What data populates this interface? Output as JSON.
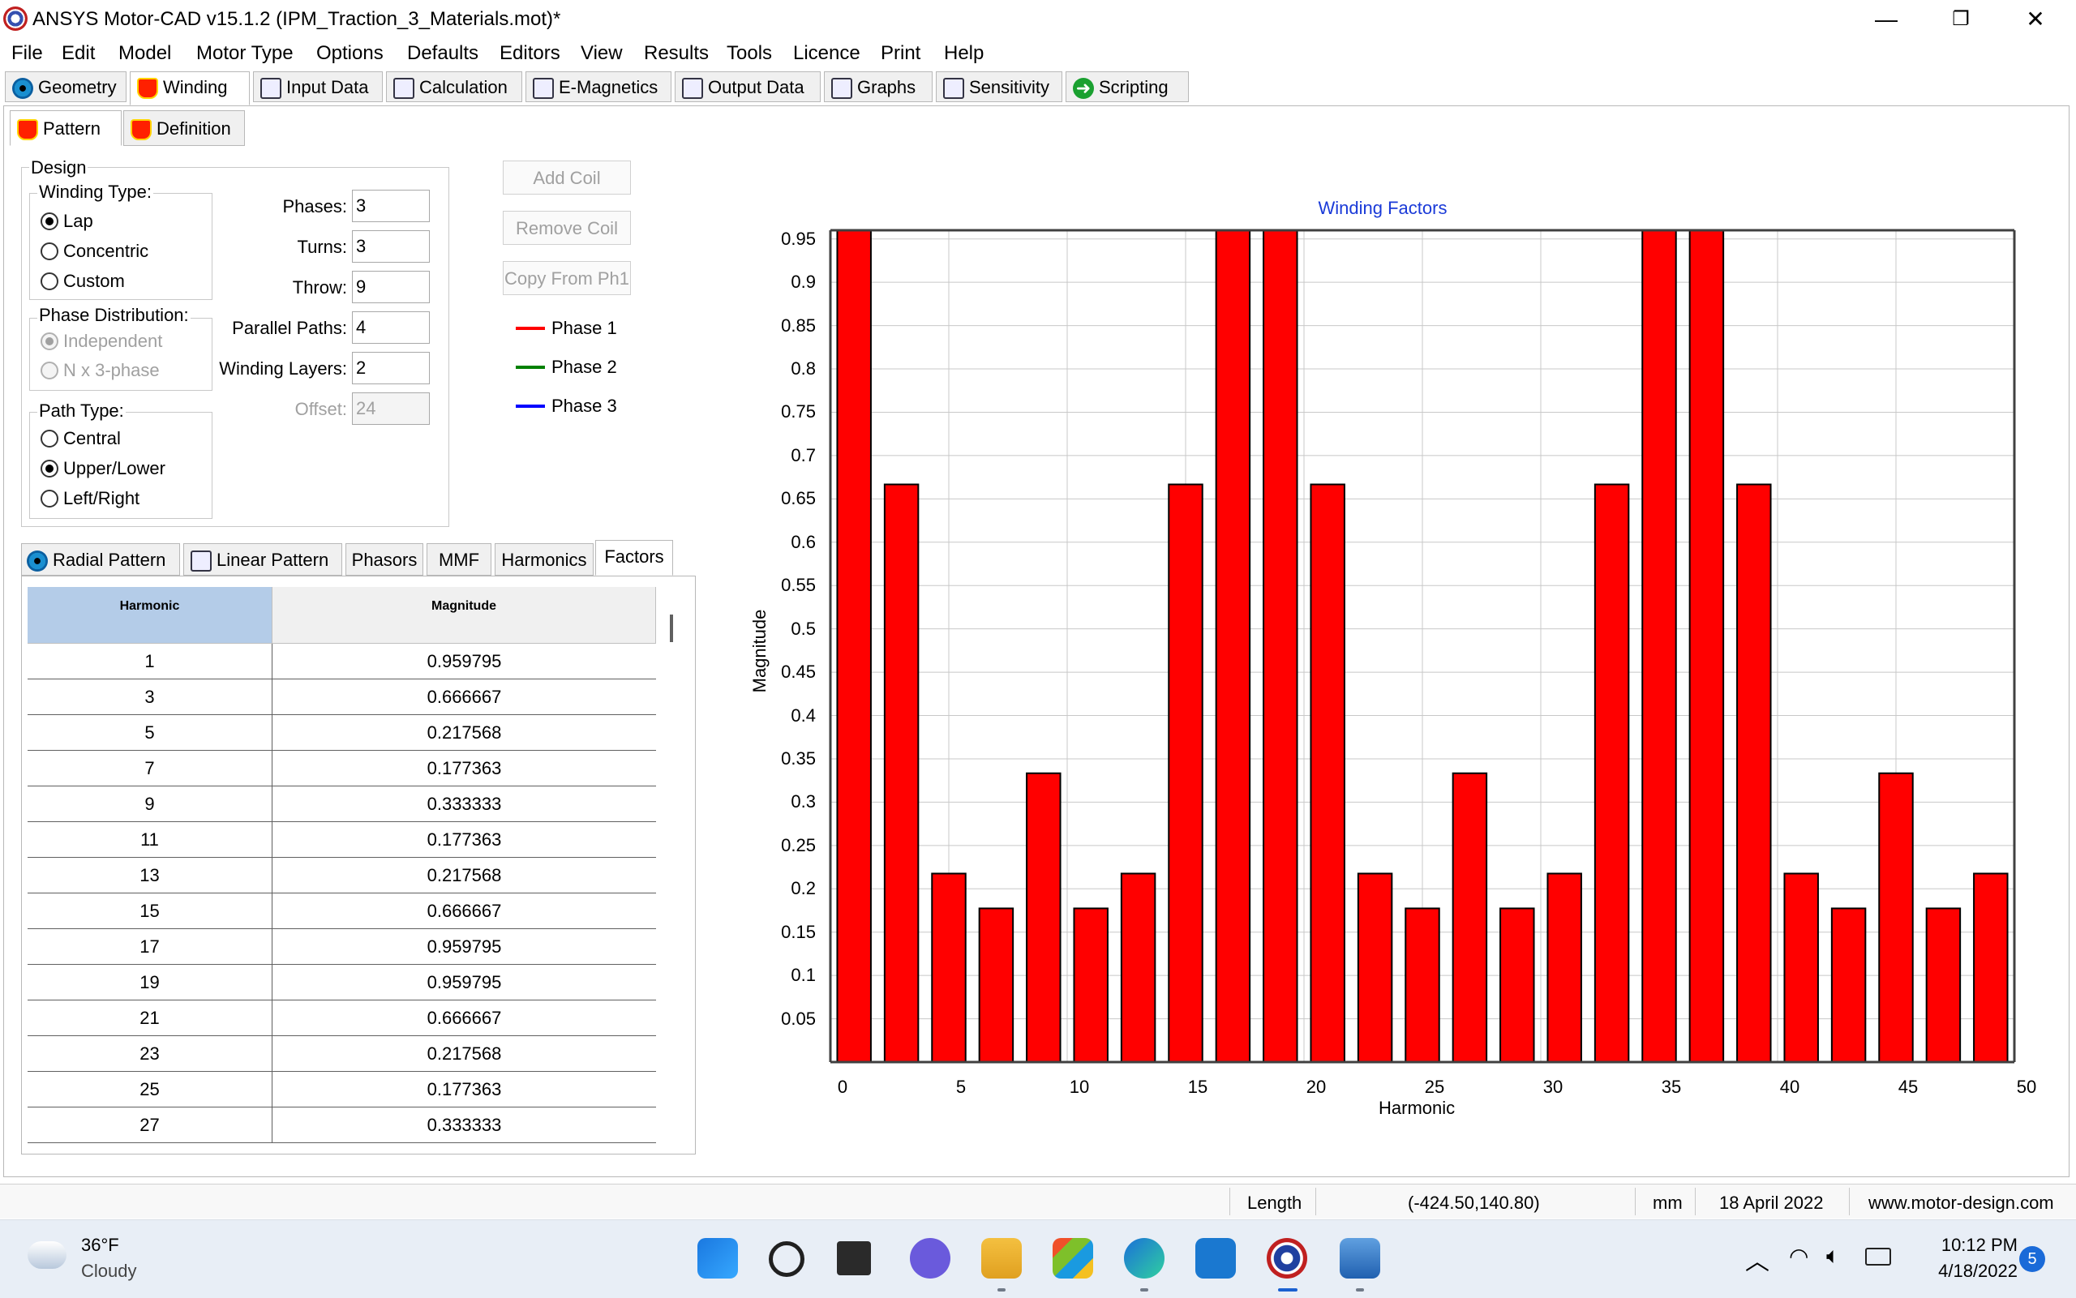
{
  "titlebar": {
    "title": "ANSYS Motor-CAD v15.1.2 (IPM_Traction_3_Materials.mot)*",
    "minimize": "—",
    "maximize": "❐",
    "close": "✕"
  },
  "menu": [
    "File",
    "Edit",
    "Model",
    "Motor Type",
    "Options",
    "Defaults",
    "Editors",
    "View",
    "Results",
    "Tools",
    "Licence",
    "Print",
    "Help"
  ],
  "main_tabs": [
    "Geometry",
    "Winding",
    "Input Data",
    "Calculation",
    "E-Magnetics",
    "Output Data",
    "Graphs",
    "Sensitivity",
    "Scripting"
  ],
  "sub_tabs": [
    "Pattern",
    "Definition"
  ],
  "design": {
    "label": "Design",
    "winding_type_label": "Winding Type:",
    "winding_types": [
      "Lap",
      "Concentric",
      "Custom"
    ],
    "phase_distribution_label": "Phase Distribution:",
    "phase_distributions": [
      "Independent",
      "N x 3-phase"
    ],
    "path_type_label": "Path Type:",
    "path_types": [
      "Central",
      "Upper/Lower",
      "Left/Right"
    ]
  },
  "fields": {
    "phases_label": "Phases:",
    "phases": "3",
    "turns_label": "Turns:",
    "turns": "3",
    "throw_label": "Throw:",
    "throw": "9",
    "parallel_paths_label": "Parallel Paths:",
    "parallel_paths": "4",
    "winding_layers_label": "Winding Layers:",
    "winding_layers": "2",
    "offset_label": "Offset:",
    "offset": "24"
  },
  "buttons": {
    "add_coil": "Add Coil",
    "remove_coil": "Remove Coil",
    "copy_from": "Copy From Ph1"
  },
  "legend": [
    {
      "name": "Phase 1",
      "color": "#ff0000"
    },
    {
      "name": "Phase 2",
      "color": "#008000"
    },
    {
      "name": "Phase 3",
      "color": "#0000ff"
    }
  ],
  "lower_tabs": [
    "Radial Pattern",
    "Linear Pattern",
    "Phasors",
    "MMF",
    "Harmonics",
    "Factors"
  ],
  "table": {
    "headers": [
      "Harmonic",
      "Magnitude"
    ],
    "rows": [
      [
        "1",
        "0.959795"
      ],
      [
        "3",
        "0.666667"
      ],
      [
        "5",
        "0.217568"
      ],
      [
        "7",
        "0.177363"
      ],
      [
        "9",
        "0.333333"
      ],
      [
        "11",
        "0.177363"
      ],
      [
        "13",
        "0.217568"
      ],
      [
        "15",
        "0.666667"
      ],
      [
        "17",
        "0.959795"
      ],
      [
        "19",
        "0.959795"
      ],
      [
        "21",
        "0.666667"
      ],
      [
        "23",
        "0.217568"
      ],
      [
        "25",
        "0.177363"
      ],
      [
        "27",
        "0.333333"
      ]
    ]
  },
  "chart_data": {
    "type": "bar",
    "title": "Winding Factors",
    "xlabel": "Harmonic",
    "ylabel": "Magnitude",
    "bar_color": "#ff0000",
    "grid": true,
    "xlim": [
      0,
      50
    ],
    "ylim": [
      0,
      0.96
    ],
    "xticks": [
      0,
      5,
      10,
      15,
      20,
      25,
      30,
      35,
      40,
      45,
      50
    ],
    "yticks": [
      "0.05",
      "0.1",
      "0.15",
      "0.2",
      "0.25",
      "0.3",
      "0.35",
      "0.4",
      "0.45",
      "0.5",
      "0.55",
      "0.6",
      "0.65",
      "0.7",
      "0.75",
      "0.8",
      "0.85",
      "0.9",
      "0.95"
    ],
    "x": [
      1,
      3,
      5,
      7,
      9,
      11,
      13,
      15,
      17,
      19,
      21,
      23,
      25,
      27,
      29,
      31,
      33,
      35,
      37,
      39,
      41,
      43,
      45,
      47,
      49
    ],
    "values": [
      0.959795,
      0.666667,
      0.217568,
      0.177363,
      0.333333,
      0.177363,
      0.217568,
      0.666667,
      0.959795,
      0.959795,
      0.666667,
      0.217568,
      0.177363,
      0.333333,
      0.177363,
      0.217568,
      0.666667,
      0.959795,
      0.959795,
      0.666667,
      0.217568,
      0.177363,
      0.333333,
      0.177363,
      0.217568
    ]
  },
  "status": {
    "length": "Length",
    "coords": "(-424.50,140.80)",
    "unit": "mm",
    "date": "18 April 2022",
    "website": "www.motor-design.com"
  },
  "taskbar": {
    "temp": "36°F",
    "weather": "Cloudy",
    "time": "10:12 PM",
    "date": "4/18/2022",
    "notifications": "5"
  }
}
